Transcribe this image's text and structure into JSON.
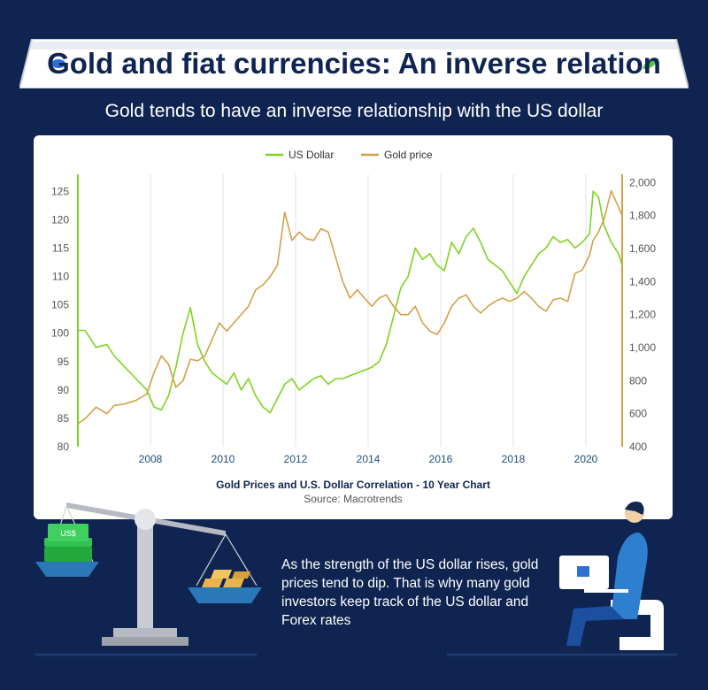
{
  "header": {
    "title": "Gold and fiat currencies: An inverse relation",
    "subtitle": "Gold tends to have an inverse relationship with the US dollar"
  },
  "colors": {
    "background": "#0f2450",
    "usd": "#7ed321",
    "gold": "#d4a04a",
    "accent_blue": "#2d6fd8",
    "accent_green": "#57c548"
  },
  "chart_data": {
    "type": "line",
    "caption": "Gold Prices and U.S. Dollar Correlation - 10 Year Chart",
    "source": "Source: Macrotrends",
    "legend": [
      "US Dollar",
      "Gold price"
    ],
    "legend_position": "top-center",
    "x_range": [
      2006.0,
      2021.0
    ],
    "x_ticks": [
      2008,
      2010,
      2012,
      2014,
      2016,
      2018,
      2020
    ],
    "x_tick_labels": [
      "2008",
      "2010",
      "2012",
      "2014",
      "2016",
      "2018",
      "2020"
    ],
    "y_left": {
      "min": 80,
      "max": 128,
      "ticks": [
        80,
        85,
        90,
        95,
        100,
        105,
        110,
        115,
        120,
        125
      ],
      "tick_labels": [
        "80",
        "85",
        "90",
        "95",
        "100",
        "105",
        "110",
        "115",
        "120",
        "125"
      ]
    },
    "y_right": {
      "min": 400,
      "max": 2050,
      "ticks": [
        400,
        600,
        800,
        1000,
        1200,
        1400,
        1600,
        1800,
        2000
      ],
      "tick_labels": [
        "400",
        "600",
        "800",
        "1,000",
        "1,200",
        "1,400",
        "1,600",
        "1,800",
        "2,000"
      ]
    },
    "grid": "vertical",
    "series": [
      {
        "name": "US Dollar",
        "axis": "left",
        "x": [
          2006.0,
          2006.2,
          2006.5,
          2006.8,
          2007.0,
          2007.3,
          2007.6,
          2007.9,
          2008.1,
          2008.3,
          2008.5,
          2008.7,
          2008.9,
          2009.1,
          2009.3,
          2009.5,
          2009.7,
          2009.9,
          2010.1,
          2010.3,
          2010.5,
          2010.7,
          2010.9,
          2011.1,
          2011.3,
          2011.5,
          2011.7,
          2011.9,
          2012.1,
          2012.3,
          2012.5,
          2012.7,
          2012.9,
          2013.1,
          2013.3,
          2013.5,
          2013.7,
          2013.9,
          2014.1,
          2014.3,
          2014.5,
          2014.7,
          2014.9,
          2015.1,
          2015.3,
          2015.5,
          2015.7,
          2015.9,
          2016.1,
          2016.3,
          2016.5,
          2016.7,
          2016.9,
          2017.1,
          2017.3,
          2017.5,
          2017.7,
          2017.9,
          2018.1,
          2018.3,
          2018.5,
          2018.7,
          2018.9,
          2019.1,
          2019.3,
          2019.5,
          2019.7,
          2019.9,
          2020.1,
          2020.2,
          2020.35,
          2020.5,
          2020.7,
          2020.9,
          2021.0
        ],
        "values": [
          100.5,
          100.5,
          97.5,
          98,
          96,
          94,
          92,
          90,
          87,
          86.5,
          89,
          94,
          100,
          104.5,
          98,
          95,
          93,
          92,
          91,
          93,
          90,
          92,
          89,
          87,
          86,
          88.5,
          91,
          92,
          90,
          91,
          92,
          92.5,
          91,
          92,
          92,
          92.5,
          93,
          93.5,
          94,
          95,
          98,
          103,
          108,
          110,
          115,
          113,
          114,
          112,
          111,
          116,
          114,
          117,
          118.5,
          116,
          113,
          112,
          111,
          109,
          107,
          110,
          112,
          114,
          115,
          117,
          116,
          116.5,
          115,
          116,
          117.5,
          125,
          124,
          119,
          116,
          114,
          112
        ]
      },
      {
        "name": "Gold price",
        "axis": "right",
        "x": [
          2006.0,
          2006.2,
          2006.5,
          2006.8,
          2007.0,
          2007.3,
          2007.6,
          2007.9,
          2008.1,
          2008.3,
          2008.5,
          2008.7,
          2008.9,
          2009.1,
          2009.3,
          2009.5,
          2009.7,
          2009.9,
          2010.1,
          2010.3,
          2010.5,
          2010.7,
          2010.9,
          2011.1,
          2011.3,
          2011.5,
          2011.7,
          2011.9,
          2012.1,
          2012.3,
          2012.5,
          2012.7,
          2012.9,
          2013.1,
          2013.3,
          2013.5,
          2013.7,
          2013.9,
          2014.1,
          2014.3,
          2014.5,
          2014.7,
          2014.9,
          2015.1,
          2015.3,
          2015.5,
          2015.7,
          2015.9,
          2016.1,
          2016.3,
          2016.5,
          2016.7,
          2016.9,
          2017.1,
          2017.3,
          2017.5,
          2017.7,
          2017.9,
          2018.1,
          2018.3,
          2018.5,
          2018.7,
          2018.9,
          2019.1,
          2019.3,
          2019.5,
          2019.7,
          2019.9,
          2020.1,
          2020.2,
          2020.35,
          2020.5,
          2020.7,
          2020.9,
          2021.0
        ],
        "values": [
          540,
          570,
          640,
          600,
          650,
          660,
          680,
          720,
          850,
          950,
          900,
          760,
          800,
          930,
          920,
          950,
          1050,
          1150,
          1100,
          1150,
          1200,
          1250,
          1350,
          1380,
          1430,
          1500,
          1820,
          1650,
          1700,
          1660,
          1650,
          1720,
          1700,
          1550,
          1400,
          1300,
          1350,
          1300,
          1250,
          1300,
          1320,
          1250,
          1200,
          1200,
          1250,
          1150,
          1100,
          1080,
          1150,
          1250,
          1300,
          1320,
          1250,
          1210,
          1250,
          1280,
          1300,
          1280,
          1300,
          1340,
          1300,
          1250,
          1220,
          1290,
          1300,
          1280,
          1450,
          1470,
          1560,
          1650,
          1700,
          1780,
          1950,
          1850,
          1800
        ]
      }
    ]
  },
  "illustration": {
    "cash_label": "US$",
    "description_text": "As the strength of the US dollar rises, gold prices tend to dip. That is why many gold investors keep track of the US dollar and Forex rates"
  }
}
